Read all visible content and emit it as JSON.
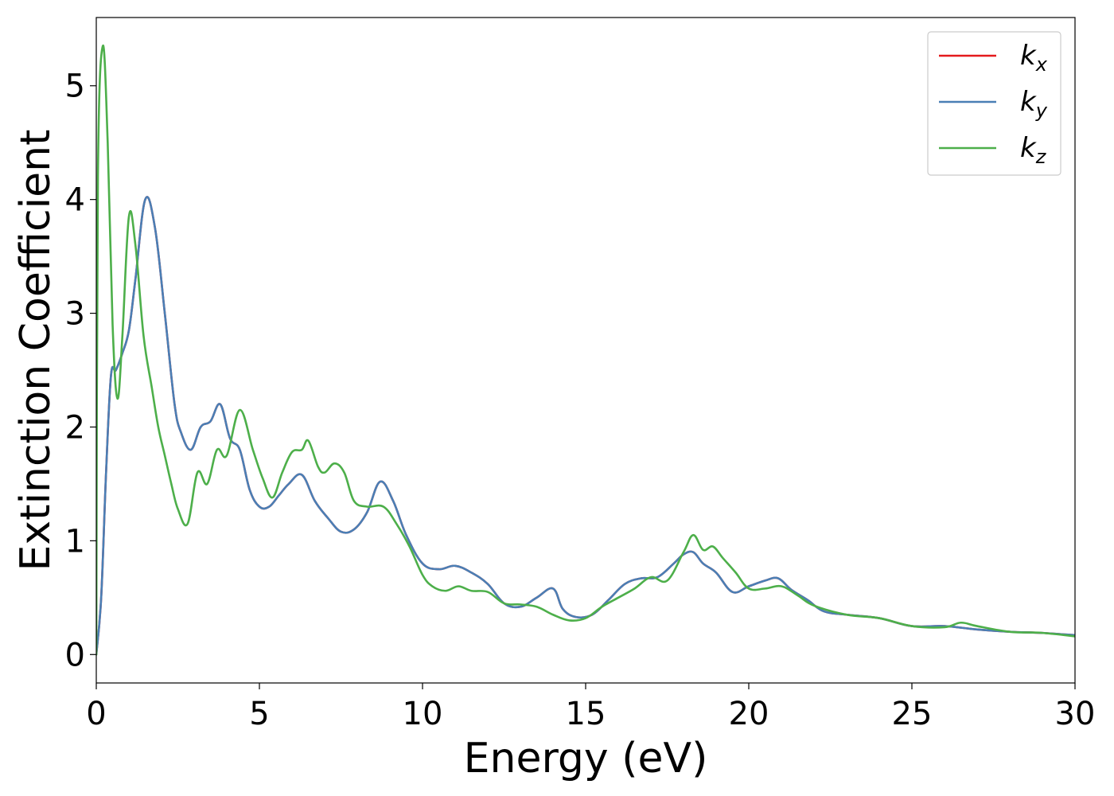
{
  "chart_data": {
    "type": "line",
    "xlabel": "Energy (eV)",
    "ylabel": "Extinction Coefficient",
    "xlim": [
      0,
      30
    ],
    "ylim": [
      -0.25,
      5.6
    ],
    "xticks": [
      0,
      5,
      10,
      15,
      20,
      25,
      30
    ],
    "xtick_labels": [
      "0",
      "5",
      "10",
      "15",
      "20",
      "25",
      "30"
    ],
    "yticks": [
      0,
      1,
      2,
      3,
      4,
      5
    ],
    "ytick_labels": [
      "0",
      "1",
      "2",
      "3",
      "4",
      "5"
    ],
    "grid": false,
    "legend_position": "top-right",
    "series": [
      {
        "name": "k",
        "subscript": "x",
        "color": "#e41a1c",
        "x": [
          0,
          0.15,
          0.3,
          0.45,
          0.6,
          0.8,
          1.0,
          1.2,
          1.5,
          1.8,
          2.1,
          2.4,
          2.6,
          2.9,
          3.2,
          3.5,
          3.8,
          4.1,
          4.4,
          4.7,
          5.0,
          5.3,
          5.6,
          5.9,
          6.3,
          6.7,
          7.1,
          7.5,
          7.9,
          8.3,
          8.7,
          9.1,
          9.5,
          10.0,
          10.5,
          11.0,
          11.5,
          12.0,
          12.5,
          13.0,
          13.5,
          14.0,
          14.3,
          14.7,
          15.2,
          15.7,
          16.2,
          16.7,
          17.2,
          17.7,
          18.0,
          18.3,
          18.6,
          19.0,
          19.5,
          20.0,
          20.5,
          20.9,
          21.3,
          21.8,
          22.3,
          23.0,
          24.0,
          25.0,
          26.0,
          27.0,
          28.0,
          29.0,
          30.0
        ],
        "y": [
          0,
          0.5,
          1.6,
          2.45,
          2.5,
          2.65,
          2.85,
          3.3,
          4.0,
          3.75,
          3.0,
          2.2,
          1.95,
          1.8,
          2.0,
          2.05,
          2.2,
          1.9,
          1.8,
          1.45,
          1.3,
          1.3,
          1.4,
          1.5,
          1.58,
          1.35,
          1.2,
          1.08,
          1.1,
          1.25,
          1.52,
          1.35,
          1.05,
          0.8,
          0.75,
          0.78,
          0.72,
          0.62,
          0.45,
          0.42,
          0.5,
          0.58,
          0.4,
          0.33,
          0.35,
          0.48,
          0.62,
          0.67,
          0.68,
          0.8,
          0.88,
          0.9,
          0.8,
          0.72,
          0.55,
          0.6,
          0.65,
          0.67,
          0.57,
          0.48,
          0.38,
          0.35,
          0.32,
          0.25,
          0.25,
          0.22,
          0.2,
          0.19,
          0.17
        ]
      },
      {
        "name": "k",
        "subscript": "y",
        "color": "#4a7fb5",
        "x": [
          0,
          0.15,
          0.3,
          0.45,
          0.6,
          0.8,
          1.0,
          1.2,
          1.5,
          1.8,
          2.1,
          2.4,
          2.6,
          2.9,
          3.2,
          3.5,
          3.8,
          4.1,
          4.4,
          4.7,
          5.0,
          5.3,
          5.6,
          5.9,
          6.3,
          6.7,
          7.1,
          7.5,
          7.9,
          8.3,
          8.7,
          9.1,
          9.5,
          10.0,
          10.5,
          11.0,
          11.5,
          12.0,
          12.5,
          13.0,
          13.5,
          14.0,
          14.3,
          14.7,
          15.2,
          15.7,
          16.2,
          16.7,
          17.2,
          17.7,
          18.0,
          18.3,
          18.6,
          19.0,
          19.5,
          20.0,
          20.5,
          20.9,
          21.3,
          21.8,
          22.3,
          23.0,
          24.0,
          25.0,
          26.0,
          27.0,
          28.0,
          29.0,
          30.0
        ],
        "y": [
          0,
          0.5,
          1.6,
          2.45,
          2.5,
          2.65,
          2.85,
          3.3,
          4.0,
          3.75,
          3.0,
          2.2,
          1.95,
          1.8,
          2.0,
          2.05,
          2.2,
          1.9,
          1.8,
          1.45,
          1.3,
          1.3,
          1.4,
          1.5,
          1.58,
          1.35,
          1.2,
          1.08,
          1.1,
          1.25,
          1.52,
          1.35,
          1.05,
          0.8,
          0.75,
          0.78,
          0.72,
          0.62,
          0.45,
          0.42,
          0.5,
          0.58,
          0.4,
          0.33,
          0.35,
          0.48,
          0.62,
          0.67,
          0.68,
          0.8,
          0.88,
          0.9,
          0.8,
          0.72,
          0.55,
          0.6,
          0.65,
          0.67,
          0.57,
          0.48,
          0.38,
          0.35,
          0.32,
          0.25,
          0.25,
          0.22,
          0.2,
          0.19,
          0.17
        ]
      },
      {
        "name": "k",
        "subscript": "z",
        "color": "#4daf4a",
        "x": [
          0,
          0.05,
          0.2,
          0.35,
          0.5,
          0.65,
          0.8,
          1.0,
          1.2,
          1.45,
          1.7,
          1.9,
          2.1,
          2.3,
          2.5,
          2.8,
          3.1,
          3.4,
          3.7,
          4.0,
          4.4,
          4.8,
          5.1,
          5.4,
          5.7,
          6.0,
          6.3,
          6.5,
          6.8,
          7.0,
          7.3,
          7.6,
          7.9,
          8.3,
          8.8,
          9.2,
          9.6,
          10.0,
          10.3,
          10.7,
          11.1,
          11.5,
          12.0,
          12.5,
          13.0,
          13.5,
          14.0,
          14.5,
          15.0,
          15.5,
          16.0,
          16.5,
          17.0,
          17.5,
          18.0,
          18.3,
          18.6,
          18.9,
          19.2,
          19.6,
          20.0,
          20.5,
          21.0,
          21.5,
          22.0,
          23.0,
          24.0,
          25.0,
          26.0,
          26.5,
          27.0,
          28.0,
          29.0,
          30.0
        ],
        "y": [
          0,
          4.2,
          5.35,
          4.5,
          2.9,
          2.25,
          2.8,
          3.85,
          3.6,
          2.8,
          2.35,
          2.0,
          1.75,
          1.5,
          1.28,
          1.15,
          1.6,
          1.5,
          1.8,
          1.75,
          2.15,
          1.8,
          1.55,
          1.38,
          1.6,
          1.78,
          1.8,
          1.88,
          1.65,
          1.6,
          1.68,
          1.6,
          1.35,
          1.3,
          1.3,
          1.15,
          0.95,
          0.7,
          0.6,
          0.56,
          0.6,
          0.56,
          0.55,
          0.45,
          0.44,
          0.42,
          0.35,
          0.3,
          0.32,
          0.42,
          0.5,
          0.58,
          0.68,
          0.65,
          0.9,
          1.05,
          0.92,
          0.95,
          0.85,
          0.72,
          0.58,
          0.58,
          0.6,
          0.52,
          0.43,
          0.35,
          0.32,
          0.25,
          0.24,
          0.28,
          0.25,
          0.2,
          0.19,
          0.16
        ]
      }
    ]
  }
}
